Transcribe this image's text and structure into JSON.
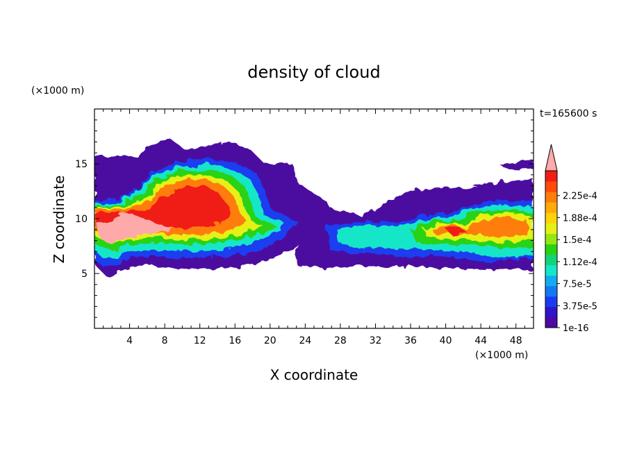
{
  "chart_data": {
    "type": "heatmap",
    "title": "density of cloud",
    "xlabel": "X coordinate",
    "ylabel": "Z coordinate",
    "x_unit": "(×1000 m)",
    "y_unit": "(×1000 m)",
    "time_label": "t=165600 s",
    "xlim": [
      0,
      50
    ],
    "ylim": [
      0,
      20
    ],
    "x_ticks": [
      4,
      8,
      12,
      16,
      20,
      24,
      28,
      32,
      36,
      40,
      44,
      48
    ],
    "y_ticks": [
      5,
      10,
      15
    ],
    "colorbar": {
      "labels": [
        "1e-16",
        "3.75e-5",
        "7.5e-5",
        "1.12e-4",
        "1.5e-4",
        "1.88e-4",
        "2.25e-4"
      ],
      "extend": "max",
      "colors": [
        "#4b0aa0",
        "#2f14c8",
        "#1a3cf0",
        "#1478f5",
        "#14aaf0",
        "#14e6c8",
        "#14d278",
        "#2ad214",
        "#96e614",
        "#e6f014",
        "#ffd20a",
        "#ffaa0a",
        "#ff7d0a",
        "#ff4b0a",
        "#f01e14",
        "#ffaaaa"
      ]
    },
    "regions": [
      {
        "name": "cloud-left",
        "x_range": [
          0,
          23
        ],
        "z_range": [
          4.5,
          17.2
        ],
        "peak": "above 2.25e-4"
      },
      {
        "name": "cloud-right",
        "x_range": [
          26,
          50
        ],
        "z_range": [
          5.5,
          15.5
        ],
        "peak": "2.25e-4"
      }
    ]
  }
}
